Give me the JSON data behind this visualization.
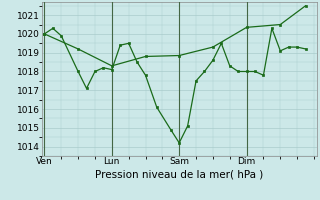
{
  "background_color": "#cce8e8",
  "grid_color": "#aacccc",
  "line_color": "#1a6b1a",
  "marker_color": "#1a6b1a",
  "xlabel": "Pression niveau de la mer( hPa )",
  "ylim": [
    1013.5,
    1021.7
  ],
  "yticks": [
    1014,
    1015,
    1016,
    1017,
    1018,
    1019,
    1020,
    1021
  ],
  "xtick_labels": [
    "Ven",
    "Lun",
    "Sam",
    "Dim"
  ],
  "xtick_positions": [
    0,
    24,
    48,
    72
  ],
  "vline_positions": [
    0,
    24,
    48,
    72
  ],
  "xlim": [
    -1,
    97
  ],
  "series1_x": [
    0,
    3,
    6,
    12,
    15,
    18,
    21,
    24,
    27,
    30,
    33,
    36,
    40,
    45,
    48,
    51,
    54,
    57,
    60,
    63,
    66,
    69,
    72,
    75,
    78,
    81,
    84,
    87,
    90,
    93
  ],
  "series1_y": [
    1020.0,
    1020.3,
    1019.9,
    1018.0,
    1017.1,
    1018.0,
    1018.2,
    1018.1,
    1019.4,
    1019.5,
    1018.5,
    1017.8,
    1016.1,
    1014.9,
    1014.2,
    1015.1,
    1017.5,
    1018.0,
    1018.6,
    1019.5,
    1018.3,
    1018.0,
    1018.0,
    1018.0,
    1017.8,
    1020.3,
    1019.1,
    1019.3,
    1019.3,
    1019.2
  ],
  "series2_x": [
    0,
    12,
    24,
    36,
    48,
    60,
    72,
    84,
    93
  ],
  "series2_y": [
    1020.0,
    1019.2,
    1018.3,
    1018.8,
    1018.85,
    1019.3,
    1020.35,
    1020.5,
    1021.5
  ],
  "xlabel_fontsize": 7.5,
  "tick_fontsize": 6.5
}
